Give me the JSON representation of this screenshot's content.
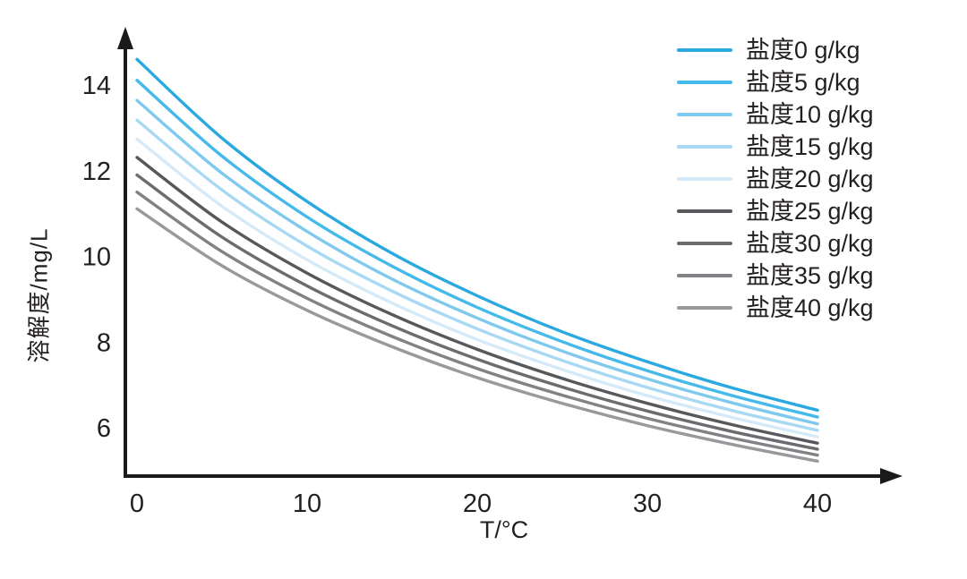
{
  "chart_data": {
    "type": "line",
    "title": "",
    "xlabel": "T/°C",
    "ylabel": "溶解度/mg/L",
    "x": [
      0,
      5,
      10,
      15,
      20,
      25,
      30,
      35,
      40
    ],
    "xticks": [
      "0",
      "10",
      "20",
      "30",
      "40"
    ],
    "xtick_values": [
      0,
      10,
      20,
      30,
      40
    ],
    "yticks": [
      "14",
      "12",
      "10",
      "8",
      "6"
    ],
    "ytick_values": [
      14,
      12,
      10,
      8,
      6
    ],
    "xlim": [
      0,
      45
    ],
    "ylim": [
      5,
      15
    ],
    "grid": false,
    "legend_position": "top-right",
    "axis_color": "#1b1b1b",
    "text_color": "#231f20",
    "series": [
      {
        "name": "盐度0 g/kg",
        "color": "#29a9e0",
        "values": [
          14.6,
          12.76,
          11.28,
          10.07,
          9.08,
          8.24,
          7.54,
          6.93,
          6.41
        ]
      },
      {
        "name": "盐度5 g/kg",
        "color": "#45baea",
        "values": [
          14.11,
          12.34,
          10.92,
          9.77,
          8.81,
          8.01,
          7.33,
          6.75,
          6.25
        ]
      },
      {
        "name": "盐度10 g/kg",
        "color": "#7fc9ee",
        "values": [
          13.64,
          11.94,
          10.58,
          9.47,
          8.56,
          7.79,
          7.14,
          6.58,
          6.09
        ]
      },
      {
        "name": "盐度15 g/kg",
        "color": "#a8d8f2",
        "values": [
          13.18,
          11.55,
          10.24,
          9.19,
          8.31,
          7.57,
          6.94,
          6.4,
          5.94
        ]
      },
      {
        "name": "盐度20 g/kg",
        "color": "#d5eaf8",
        "values": [
          12.74,
          11.17,
          9.92,
          8.91,
          8.06,
          7.36,
          6.75,
          6.24,
          5.79
        ]
      },
      {
        "name": "盐度25 g/kg",
        "color": "#57585c",
        "values": [
          12.31,
          10.8,
          9.61,
          8.64,
          7.83,
          7.15,
          6.57,
          6.07,
          5.64
        ]
      },
      {
        "name": "盐度30 g/kg",
        "color": "#6b6c70",
        "values": [
          11.9,
          10.45,
          9.31,
          8.38,
          7.6,
          6.95,
          6.39,
          5.91,
          5.5
        ]
      },
      {
        "name": "盐度35 g/kg",
        "color": "#808285",
        "values": [
          11.5,
          10.11,
          9.02,
          8.13,
          7.38,
          6.76,
          6.22,
          5.76,
          5.36
        ]
      },
      {
        "name": "盐度40 g/kg",
        "color": "#97999c",
        "values": [
          11.11,
          9.78,
          8.74,
          7.89,
          7.17,
          6.57,
          6.05,
          5.61,
          5.22
        ]
      }
    ]
  }
}
